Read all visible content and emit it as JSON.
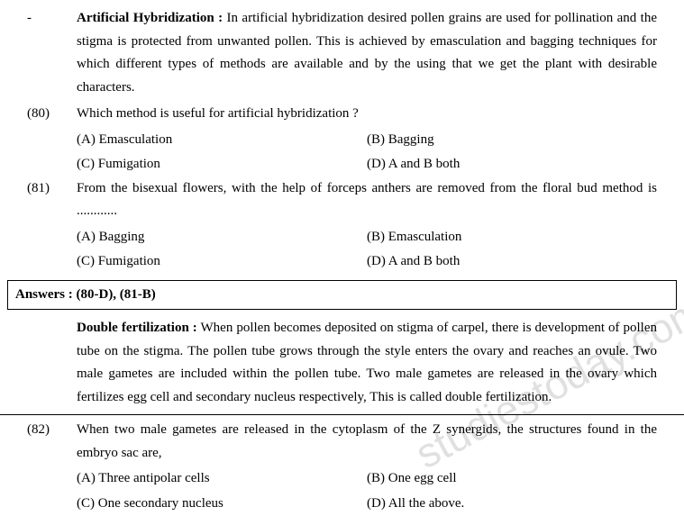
{
  "colors": {
    "text": "#000000",
    "bg": "#ffffff",
    "watermark": "rgba(0,0,0,0.12)",
    "border": "#000000"
  },
  "typography": {
    "family": "Times New Roman",
    "size_pt": 11.5,
    "line_height": 1.7
  },
  "intro1": {
    "marker": "-",
    "heading": "Artificial Hybridization :",
    "text": " In artificial hybridization desired pollen grains are used for pollination and the stigma is protected from unwanted pollen. This is achieved by emasculation and bagging techniques for which different types of methods are available and by the using that we get the plant with desirable characters."
  },
  "q80": {
    "num": "(80)",
    "text": "Which method is useful for artificial hybridization ?",
    "a": "(A) Emasculation",
    "b": "(B) Bagging",
    "c": "(C) Fumigation",
    "d": "(D) A and B both"
  },
  "q81": {
    "num": "(81)",
    "text": "From the bisexual flowers, with the help of forceps anthers are removed from the floral bud method is ............",
    "a": "(A) Bagging",
    "b": "(B) Emasculation",
    "c": "(C) Fumigation",
    "d": "(D) A and B both"
  },
  "answers": "Answers  :  (80-D),  (81-B)",
  "intro2": {
    "heading": "Double fertilization :",
    "text": " When pollen becomes deposited on stigma of carpel, there is development of pollen tube on the stigma. The pollen tube grows through the style enters the ovary and reaches an ovule. Two male gametes are included within the pollen tube. Two male gametes are released in the ovary which fertilizes egg cell and secondary nucleus respectively, This is called double fertilization."
  },
  "q82": {
    "num": "(82)",
    "text": "When two male gametes are released in the cytoplasm of the Z synergids, the structures found in the embryo sac are,",
    "a": "(A) Three antipolar cells",
    "b": "(B) One egg cell",
    "c": "(C) One secondary nucleus",
    "d": "(D) All the above."
  },
  "watermark": "studiestoday.com"
}
